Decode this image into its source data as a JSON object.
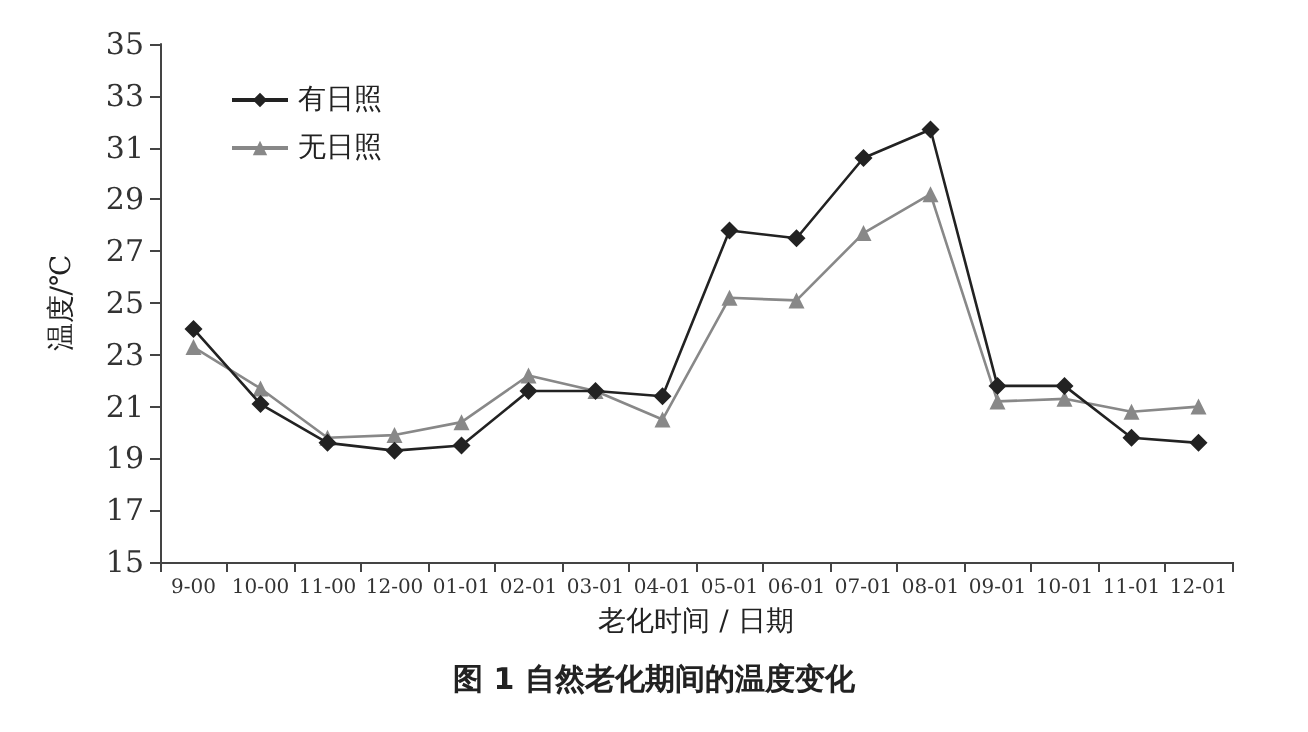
{
  "chart_data": {
    "type": "line",
    "title": "图 1 自然老化期间的温度变化",
    "xlabel": "老化时间 / 日期",
    "ylabel": "温度/℃",
    "categories": [
      "9-00",
      "10-00",
      "11-00",
      "12-00",
      "01-01",
      "02-01",
      "03-01",
      "04-01",
      "05-01",
      "06-01",
      "07-01",
      "08-01",
      "09-01",
      "10-01",
      "11-01",
      "12-01"
    ],
    "series": [
      {
        "name": "有日照",
        "color": "#222222",
        "marker": "diamond",
        "values": [
          24.0,
          21.1,
          19.6,
          19.3,
          19.5,
          21.6,
          21.6,
          21.4,
          27.8,
          27.5,
          30.6,
          31.7,
          21.8,
          21.8,
          19.8,
          19.6
        ]
      },
      {
        "name": "无日照",
        "color": "#888888",
        "marker": "triangle",
        "values": [
          23.3,
          21.7,
          19.8,
          19.9,
          20.4,
          22.2,
          21.6,
          20.5,
          25.2,
          25.1,
          27.7,
          29.2,
          21.2,
          21.3,
          20.8,
          21.0
        ]
      }
    ],
    "ylim": [
      15,
      35
    ],
    "yticks": [
      15,
      17,
      19,
      21,
      23,
      25,
      27,
      29,
      31,
      33,
      35
    ],
    "grid": false,
    "legend": "top left"
  }
}
